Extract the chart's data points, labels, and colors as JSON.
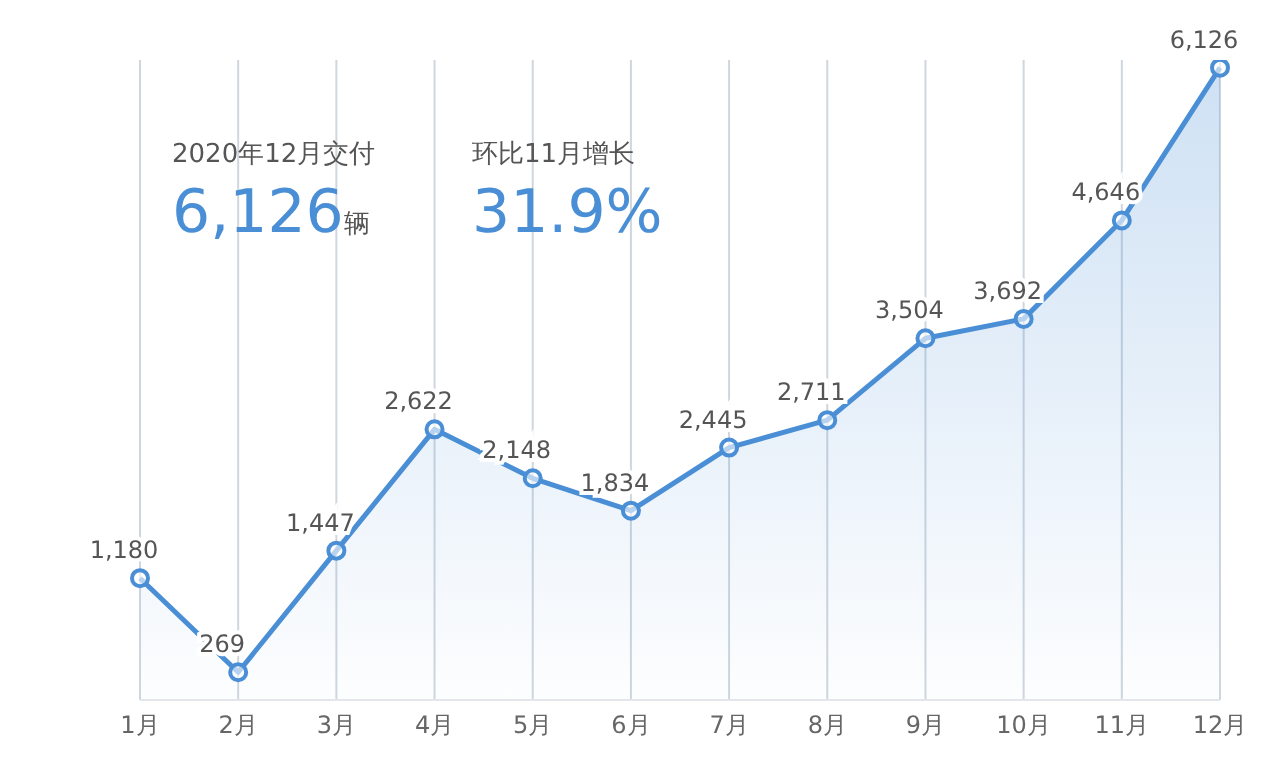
{
  "chart_data": {
    "type": "area",
    "categories": [
      "1月",
      "2月",
      "3月",
      "4月",
      "5月",
      "6月",
      "7月",
      "8月",
      "9月",
      "10月",
      "11月",
      "12月"
    ],
    "series": [
      {
        "color": "#4a8fd6",
        "values": [
          1180,
          269,
          1447,
          2622,
          2148,
          1834,
          2445,
          2711,
          3504,
          3692,
          4646,
          6126
        ],
        "value_labels": [
          "1,180",
          "269",
          "1,447",
          "2,622",
          "2,148",
          "1,834",
          "2,445",
          "2,711",
          "3,504",
          "3,692",
          "4,646",
          "6,126"
        ]
      }
    ],
    "ylim": [
      0,
      6200
    ],
    "tick_labels": "x",
    "grid": "x",
    "marker": "circle",
    "annotations": [
      "2020年12月交付",
      "6,126辆",
      "环比11月增长",
      "31.9%"
    ]
  }
}
